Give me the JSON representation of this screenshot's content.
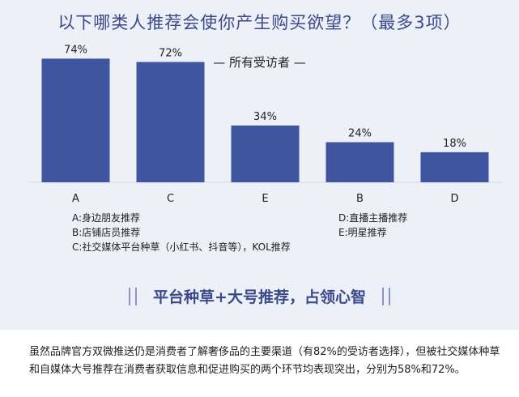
{
  "title": "以下哪类人推荐会使你产生购买欲望？（最多3项）",
  "subtitle": "— 所有受访者 —",
  "chart_data": {
    "type": "bar",
    "title": "以下哪类人推荐会使你产生购买欲望？（最多3项）",
    "subtitle": "— 所有受访者 —",
    "categories": [
      "A",
      "C",
      "E",
      "B",
      "D"
    ],
    "values": [
      74,
      72,
      34,
      24,
      18
    ],
    "value_labels": [
      "74%",
      "72%",
      "34%",
      "24%",
      "18%"
    ],
    "unit": "%",
    "ylim": [
      0,
      80
    ],
    "grid": false,
    "bar_color": "#3f559f"
  },
  "legend": {
    "left": [
      "A:身边朋友推荐",
      "B:店铺店员推荐",
      "C:社交媒体平台种草（小红书、抖音等），KOL推荐"
    ],
    "right": [
      "D:直播主播推荐",
      "E:明星推荐"
    ]
  },
  "banner": "平台种草+大号推荐，占领心智",
  "body_text": "虽然品牌官方双微推送仍是消费者了解奢侈品的主要渠道（有82%的受访者选择），但被社交媒体种草和自媒体大号推荐在消费者获取信息和促进购买的两个环节均表现突出，分别为58%和72%。",
  "colors": {
    "background_card": "#edf0f6",
    "accent": "#3b4a8c",
    "bar": "#3f559f"
  }
}
